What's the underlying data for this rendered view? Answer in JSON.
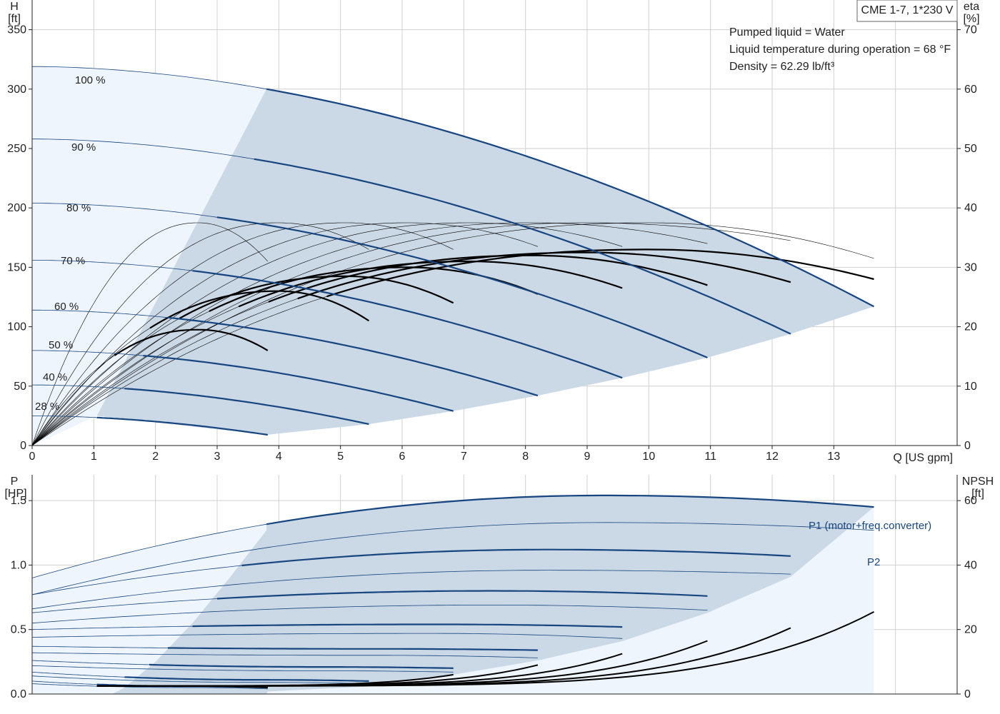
{
  "product_label": "CME 1-7, 1*230 V",
  "info_lines": [
    "Pumped liquid = Water",
    "Liquid temperature during operation = 68 °F",
    "Density = 62.29 lb/ft³"
  ],
  "colors": {
    "blue": "#17457f",
    "area_light": "#eef5fc",
    "area_dark": "#cbd8e5",
    "grid": "#d0d0d0",
    "black": "#000000"
  },
  "chart_data": [
    {
      "type": "line",
      "name": "head",
      "xlabel": "Q [US gpm]",
      "ylabel_left": [
        "H",
        "[ft]"
      ],
      "ylabel_right": [
        "eta",
        "[%]"
      ],
      "xlim": [
        0,
        15
      ],
      "ylim_left": [
        0,
        375
      ],
      "ylim_right": [
        0,
        75
      ],
      "x_ticks": [
        0,
        1,
        2,
        3,
        4,
        5,
        6,
        7,
        8,
        9,
        10,
        11,
        12,
        13
      ],
      "y_ticks_left": [
        0,
        50,
        100,
        150,
        200,
        250,
        300,
        350
      ],
      "y_ticks_right": [
        0,
        10,
        20,
        30,
        40,
        50,
        60,
        70
      ],
      "speed_curves": [
        {
          "label": "100 %",
          "h0": 319,
          "qmax": 13.65,
          "hend": 117
        },
        {
          "label": "90 %",
          "h0": 258,
          "qmax": 12.3,
          "hend": 94
        },
        {
          "label": "80 %",
          "h0": 204,
          "qmax": 10.95,
          "hend": 74
        },
        {
          "label": "70 %",
          "h0": 156,
          "qmax": 9.57,
          "hend": 57
        },
        {
          "label": "60 %",
          "h0": 114,
          "qmax": 8.2,
          "hend": 42
        },
        {
          "label": "50 %",
          "h0": 80,
          "qmax": 6.83,
          "hend": 29
        },
        {
          "label": "40 %",
          "h0": 51,
          "qmax": 5.46,
          "hend": 18
        },
        {
          "label": "28 %",
          "h0": 25,
          "qmax": 3.82,
          "hend": 9
        }
      ],
      "area_light_top": [
        [
          0,
          319
        ],
        [
          3.8,
          295
        ]
      ],
      "area_min_boundary": [
        [
          1.05,
          25
        ],
        [
          3.8,
          9
        ],
        [
          5.46,
          18
        ],
        [
          6.83,
          29
        ],
        [
          8.2,
          42
        ],
        [
          9.57,
          57
        ],
        [
          10.95,
          74
        ],
        [
          12.3,
          94
        ],
        [
          13.65,
          117
        ]
      ],
      "eff_curves": [
        {
          "qmax": 3.82,
          "peak_q": 2.7,
          "peak_eff": 37.5,
          "end_eff": 31
        },
        {
          "qmax": 5.46,
          "peak_q": 4.0,
          "peak_eff": 37.5,
          "end_eff": 33
        },
        {
          "qmax": 6.83,
          "peak_q": 5.1,
          "peak_eff": 37.5,
          "end_eff": 33
        },
        {
          "qmax": 8.2,
          "peak_q": 6.1,
          "peak_eff": 37.5,
          "end_eff": 33.5
        },
        {
          "qmax": 9.57,
          "peak_q": 7.1,
          "peak_eff": 37.5,
          "end_eff": 33.5
        },
        {
          "qmax": 10.95,
          "peak_q": 8.1,
          "peak_eff": 37.5,
          "end_eff": 34
        },
        {
          "qmax": 12.3,
          "peak_q": 9.0,
          "peak_eff": 37.5,
          "end_eff": 34.5
        },
        {
          "qmax": 13.65,
          "peak_q": 10.0,
          "peak_eff": 37.5,
          "end_eff": 31.5
        }
      ],
      "bold_eff_curves": [
        {
          "qmax": 3.82,
          "peak_q": 2.7,
          "peak_eff": 19.5,
          "end_eff": 16
        },
        {
          "qmax": 5.46,
          "peak_q": 4.0,
          "peak_eff": 26,
          "end_eff": 21
        },
        {
          "qmax": 6.83,
          "peak_q": 5.1,
          "peak_eff": 28.5,
          "end_eff": 24
        },
        {
          "qmax": 8.2,
          "peak_q": 6.1,
          "peak_eff": 30,
          "end_eff": 25.5
        },
        {
          "qmax": 9.57,
          "peak_q": 7.1,
          "peak_eff": 31,
          "end_eff": 26.5
        },
        {
          "qmax": 10.95,
          "peak_q": 8.1,
          "peak_eff": 32,
          "end_eff": 27
        },
        {
          "qmax": 12.3,
          "peak_q": 9.0,
          "peak_eff": 32.5,
          "end_eff": 27.5
        },
        {
          "qmax": 13.65,
          "peak_q": 10.0,
          "peak_eff": 33,
          "end_eff": 28
        }
      ]
    },
    {
      "type": "line",
      "name": "power_npsh",
      "ylabel_left": [
        "P",
        "[HP]"
      ],
      "ylabel_right": [
        "NPSH",
        "[ft]"
      ],
      "xlim": [
        0,
        15
      ],
      "ylim_left": [
        0,
        1.7
      ],
      "ylim_right": [
        0,
        68
      ],
      "y_ticks_left": [
        0.0,
        0.5,
        1.0,
        1.5
      ],
      "y_ticks_left_labels": [
        "0.0",
        "0.5",
        "1.0",
        "1.5"
      ],
      "y_ticks_right": [
        0,
        20,
        40,
        60
      ],
      "series_labels": {
        "p1": "P1 (motor+freq.converter)",
        "p2": "P2"
      },
      "power_curves": [
        {
          "qmax": 13.65,
          "p1_0": 0.9,
          "p1_peak": 1.54,
          "p1_end": 1.45,
          "p2_0": 0.77,
          "p2_peak": 1.33,
          "p2_end": 1.27
        },
        {
          "qmax": 12.3,
          "p1_0": 0.77,
          "p1_peak": 1.12,
          "p1_end": 1.07,
          "p2_0": 0.66,
          "p2_peak": 0.96,
          "p2_end": 0.93
        },
        {
          "qmax": 10.95,
          "p1_0": 0.63,
          "p1_peak": 0.8,
          "p1_end": 0.76,
          "p2_0": 0.55,
          "p2_peak": 0.69,
          "p2_end": 0.65
        },
        {
          "qmax": 9.57,
          "p1_0": 0.5,
          "p1_peak": 0.54,
          "p1_end": 0.52,
          "p2_0": 0.44,
          "p2_peak": 0.47,
          "p2_end": 0.43
        },
        {
          "qmax": 8.2,
          "p1_0": 0.37,
          "p1_peak": 0.35,
          "p1_end": 0.34,
          "p2_0": 0.32,
          "p2_peak": 0.3,
          "p2_end": 0.28
        },
        {
          "qmax": 6.83,
          "p1_0": 0.26,
          "p1_peak": 0.21,
          "p1_end": 0.2,
          "p2_0": 0.22,
          "p2_peak": 0.18,
          "p2_end": 0.17
        },
        {
          "qmax": 5.46,
          "p1_0": 0.17,
          "p1_peak": 0.11,
          "p1_end": 0.1,
          "p2_0": 0.14,
          "p2_peak": 0.09,
          "p2_end": 0.08
        },
        {
          "qmax": 3.82,
          "p1_0": 0.1,
          "p1_peak": 0.06,
          "p1_end": 0.05,
          "p2_0": 0.08,
          "p2_peak": 0.05,
          "p2_end": 0.04
        }
      ],
      "npsh_curves": [
        {
          "qmax": 3.82,
          "end": 2
        },
        {
          "qmax": 5.46,
          "end": 3
        },
        {
          "qmax": 6.83,
          "end": 6
        },
        {
          "qmax": 8.2,
          "end": 9
        },
        {
          "qmax": 9.57,
          "end": 12.5
        },
        {
          "qmax": 10.95,
          "end": 16.5
        },
        {
          "qmax": 12.3,
          "end": 20.5
        },
        {
          "qmax": 13.65,
          "end": 25.5
        }
      ]
    }
  ]
}
